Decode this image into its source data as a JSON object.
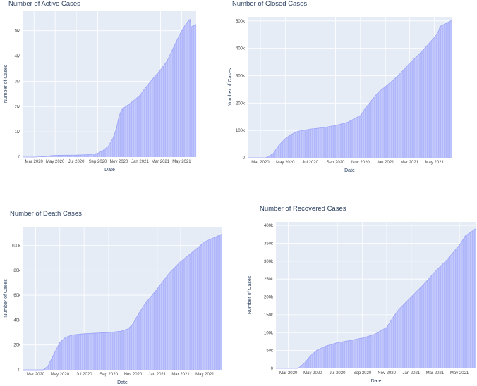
{
  "chart_data": [
    {
      "type": "area",
      "title": "Number of Active Cases",
      "xlabel": "Date",
      "ylabel": "Number of Cases",
      "x_ticks": [
        "Mar 2020",
        "May 2020",
        "Jul 2020",
        "Sep 2020",
        "Nov 2020",
        "Jan 2021",
        "Mar 2021",
        "May 2021"
      ],
      "y_ticks": [
        "0",
        "1M",
        "2M",
        "3M",
        "4M",
        "5M"
      ],
      "y_tick_values": [
        0,
        1000000,
        2000000,
        3000000,
        4000000,
        5000000
      ],
      "xlim": [
        "2020-01-30",
        "2021-06-12"
      ],
      "ylim": [
        0,
        5800000
      ],
      "color": "#636efa",
      "series": [
        {
          "x": [
            "2020-01-30",
            "2020-03-01",
            "2020-04-01",
            "2020-04-20",
            "2020-05-01",
            "2020-06-01",
            "2020-07-01",
            "2020-08-01",
            "2020-08-20",
            "2020-09-01",
            "2020-09-15",
            "2020-10-01",
            "2020-10-15",
            "2020-10-25",
            "2020-11-01",
            "2020-11-08",
            "2020-11-15",
            "2020-12-01",
            "2020-12-15",
            "2021-01-01",
            "2021-01-20",
            "2021-02-10",
            "2021-03-01",
            "2021-03-20",
            "2021-04-01",
            "2021-04-15",
            "2021-05-01",
            "2021-05-15",
            "2021-05-25",
            "2021-05-28",
            "2021-06-05",
            "2021-06-12"
          ],
          "y": [
            0,
            0,
            20000,
            60000,
            70000,
            75000,
            80000,
            95000,
            120000,
            150000,
            250000,
            420000,
            750000,
            1150000,
            1600000,
            1850000,
            1950000,
            2100000,
            2250000,
            2450000,
            2800000,
            3150000,
            3450000,
            3800000,
            4150000,
            4550000,
            5000000,
            5300000,
            5450000,
            5150000,
            5200000,
            5250000
          ]
        }
      ]
    },
    {
      "type": "area",
      "title": "Number of Closed Cases",
      "xlabel": "Date",
      "ylabel": "Number of Cases",
      "x_ticks": [
        "Mar 2020",
        "May 2020",
        "Jul 2020",
        "Sep 2020",
        "Nov 2020",
        "Jan 2021",
        "Mar 2021",
        "May 2021"
      ],
      "y_ticks": [
        "0",
        "100k",
        "200k",
        "300k",
        "400k",
        "500k"
      ],
      "y_tick_values": [
        0,
        100000,
        200000,
        300000,
        400000,
        500000
      ],
      "xlim": [
        "2020-01-30",
        "2021-06-12"
      ],
      "ylim": [
        0,
        515000
      ],
      "color": "#636efa",
      "series": [
        {
          "x": [
            "2020-01-30",
            "2020-03-15",
            "2020-04-01",
            "2020-04-15",
            "2020-05-01",
            "2020-05-15",
            "2020-06-01",
            "2020-07-01",
            "2020-08-01",
            "2020-09-01",
            "2020-10-01",
            "2020-11-01",
            "2020-11-15",
            "2020-12-01",
            "2020-12-15",
            "2021-01-01",
            "2021-02-01",
            "2021-03-01",
            "2021-04-01",
            "2021-05-01",
            "2021-05-10",
            "2021-05-15",
            "2021-06-12"
          ],
          "y": [
            0,
            0,
            15000,
            45000,
            70000,
            85000,
            97000,
            105000,
            110000,
            118000,
            130000,
            155000,
            185000,
            215000,
            240000,
            260000,
            300000,
            345000,
            390000,
            440000,
            460000,
            480000,
            502000
          ]
        }
      ]
    },
    {
      "type": "area",
      "title": "Number of Death Cases",
      "xlabel": "Date",
      "ylabel": "Number of Cases",
      "x_ticks": [
        "Mar 2020",
        "May 2020",
        "Jul 2020",
        "Sep 2020",
        "Nov 2020",
        "Jan 2021",
        "Mar 2021",
        "May 2021"
      ],
      "y_ticks": [
        "0",
        "20k",
        "40k",
        "60k",
        "80k",
        "100k"
      ],
      "y_tick_values": [
        0,
        20000,
        40000,
        60000,
        80000,
        100000
      ],
      "xlim": [
        "2020-01-30",
        "2021-06-12"
      ],
      "ylim": [
        0,
        115000
      ],
      "color": "#636efa",
      "series": [
        {
          "x": [
            "2020-01-30",
            "2020-03-20",
            "2020-04-01",
            "2020-04-15",
            "2020-05-01",
            "2020-05-15",
            "2020-06-01",
            "2020-07-01",
            "2020-08-01",
            "2020-09-01",
            "2020-10-01",
            "2020-10-20",
            "2020-11-01",
            "2020-11-15",
            "2020-12-01",
            "2021-01-01",
            "2021-02-01",
            "2021-03-01",
            "2021-04-01",
            "2021-05-01",
            "2021-06-12"
          ],
          "y": [
            0,
            0,
            3000,
            12000,
            22000,
            26000,
            28000,
            29000,
            29500,
            30000,
            31000,
            33000,
            37000,
            45000,
            53000,
            65000,
            78000,
            87000,
            95000,
            103000,
            109000
          ]
        }
      ]
    },
    {
      "type": "area",
      "title": "Number of Recovered Cases",
      "xlabel": "Date",
      "ylabel": "Number of Cases",
      "x_ticks": [
        "Mar 2020",
        "May 2020",
        "Jul 2020",
        "Sep 2020",
        "Nov 2020",
        "Jan 2021",
        "Mar 2021",
        "May 2021"
      ],
      "y_ticks": [
        "0",
        "50k",
        "100k",
        "150k",
        "200k",
        "250k",
        "300k",
        "350k",
        "400k"
      ],
      "y_tick_values": [
        0,
        50000,
        100000,
        150000,
        200000,
        250000,
        300000,
        350000,
        400000
      ],
      "xlim": [
        "2020-01-30",
        "2021-06-12"
      ],
      "ylim": [
        0,
        410000
      ],
      "color": "#636efa",
      "series": [
        {
          "x": [
            "2020-01-30",
            "2020-03-25",
            "2020-04-10",
            "2020-04-25",
            "2020-05-10",
            "2020-06-01",
            "2020-07-01",
            "2020-08-01",
            "2020-09-01",
            "2020-10-01",
            "2020-11-01",
            "2020-11-15",
            "2020-12-01",
            "2021-01-01",
            "2021-02-01",
            "2021-03-01",
            "2021-04-01",
            "2021-05-01",
            "2021-05-10",
            "2021-05-15",
            "2021-06-12"
          ],
          "y": [
            0,
            0,
            15000,
            35000,
            50000,
            62000,
            72000,
            78000,
            85000,
            95000,
            115000,
            140000,
            165000,
            200000,
            235000,
            270000,
            305000,
            345000,
            360000,
            370000,
            392000
          ]
        }
      ]
    }
  ]
}
